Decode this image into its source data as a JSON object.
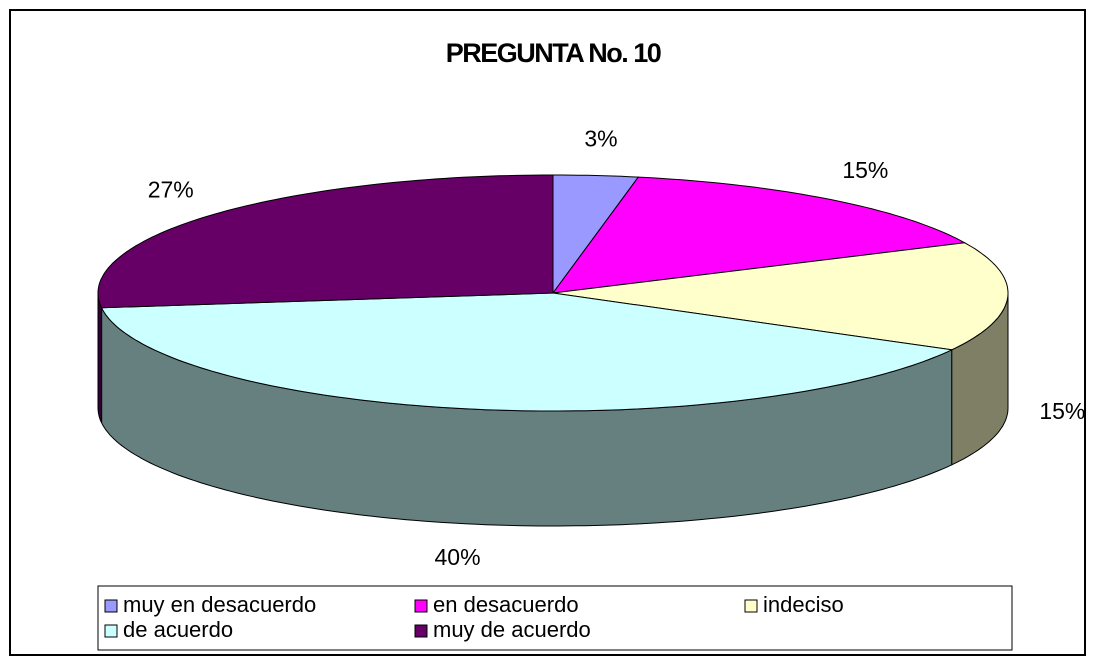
{
  "chart_data": {
    "type": "pie",
    "title": "PREGUNTA No. 10",
    "categories": [
      "muy en desacuerdo",
      "en desacuerdo",
      "indeciso",
      "de acuerdo",
      "muy de acuerdo"
    ],
    "values": [
      3,
      15,
      15,
      40,
      27
    ],
    "value_labels": [
      "3%",
      "15%",
      "15%",
      "40%",
      "27%"
    ],
    "colors": [
      "#9999ff",
      "#ff00ff",
      "#ffffcc",
      "#ccffff",
      "#660066"
    ],
    "legend": "bottom"
  }
}
